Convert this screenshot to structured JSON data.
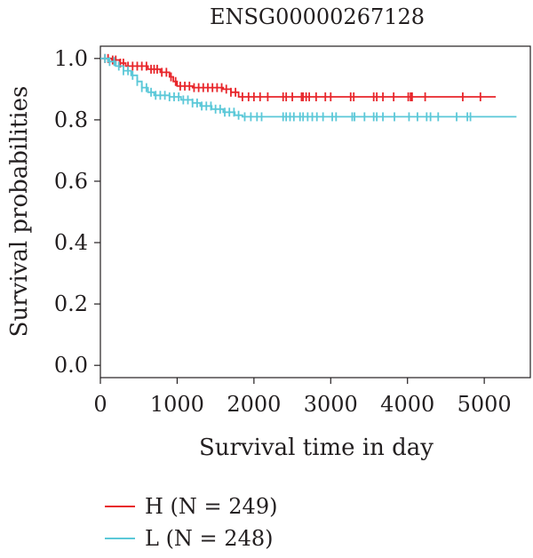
{
  "chart_data": {
    "type": "line",
    "title": "ENSG00000267128",
    "xlabel": "Survival time in day",
    "ylabel": "Survival probabilities",
    "xlim": [
      0,
      5600
    ],
    "ylim": [
      -0.04,
      1.04
    ],
    "x_ticks": [
      "0",
      "1000",
      "2000",
      "3000",
      "4000",
      "5000"
    ],
    "y_ticks": [
      "0.0",
      "0.2",
      "0.4",
      "0.6",
      "0.8",
      "1.0"
    ],
    "grid": false,
    "legend_position": "bottom-left",
    "series": [
      {
        "name": "H (N = 249)",
        "color": "#e8262b",
        "steps": [
          [
            0,
            1.0
          ],
          [
            150,
            0.995
          ],
          [
            250,
            0.985
          ],
          [
            330,
            0.975
          ],
          [
            620,
            0.965
          ],
          [
            780,
            0.955
          ],
          [
            900,
            0.94
          ],
          [
            950,
            0.925
          ],
          [
            1000,
            0.91
          ],
          [
            1200,
            0.905
          ],
          [
            1600,
            0.9
          ],
          [
            1700,
            0.89
          ],
          [
            1800,
            0.875
          ],
          [
            5150,
            0.875
          ]
        ],
        "censor_times": [
          60,
          100,
          160,
          200,
          260,
          300,
          360,
          420,
          480,
          540,
          600,
          660,
          700,
          740,
          800,
          860,
          920,
          980,
          1040,
          1100,
          1160,
          1220,
          1280,
          1340,
          1400,
          1460,
          1520,
          1580,
          1640,
          1700,
          1760,
          1850,
          1930,
          2000,
          2080,
          2180,
          2380,
          2420,
          2500,
          2620,
          2640,
          2680,
          2720,
          2810,
          2930,
          3000,
          3260,
          3300,
          3560,
          3600,
          3680,
          3820,
          4010,
          4040,
          4060,
          4230,
          4720,
          4950
        ]
      },
      {
        "name": "L (N = 248)",
        "color": "#5bc8d8",
        "steps": [
          [
            0,
            1.0
          ],
          [
            100,
            0.99
          ],
          [
            200,
            0.975
          ],
          [
            300,
            0.96
          ],
          [
            400,
            0.945
          ],
          [
            480,
            0.925
          ],
          [
            540,
            0.905
          ],
          [
            620,
            0.89
          ],
          [
            700,
            0.88
          ],
          [
            900,
            0.875
          ],
          [
            1050,
            0.865
          ],
          [
            1200,
            0.855
          ],
          [
            1300,
            0.845
          ],
          [
            1450,
            0.835
          ],
          [
            1600,
            0.825
          ],
          [
            1750,
            0.815
          ],
          [
            1850,
            0.81
          ],
          [
            5420,
            0.81
          ]
        ],
        "censor_times": [
          60,
          120,
          180,
          240,
          300,
          360,
          420,
          480,
          540,
          600,
          660,
          720,
          780,
          840,
          900,
          960,
          1020,
          1080,
          1140,
          1200,
          1260,
          1320,
          1380,
          1440,
          1500,
          1560,
          1620,
          1680,
          1740,
          1800,
          1880,
          1960,
          2040,
          2100,
          2380,
          2420,
          2470,
          2520,
          2600,
          2640,
          2700,
          2760,
          2820,
          2900,
          3020,
          3070,
          3280,
          3310,
          3440,
          3560,
          3600,
          3680,
          3830,
          4020,
          4130,
          4250,
          4300,
          4400,
          4640,
          4780,
          4820
        ]
      }
    ]
  }
}
